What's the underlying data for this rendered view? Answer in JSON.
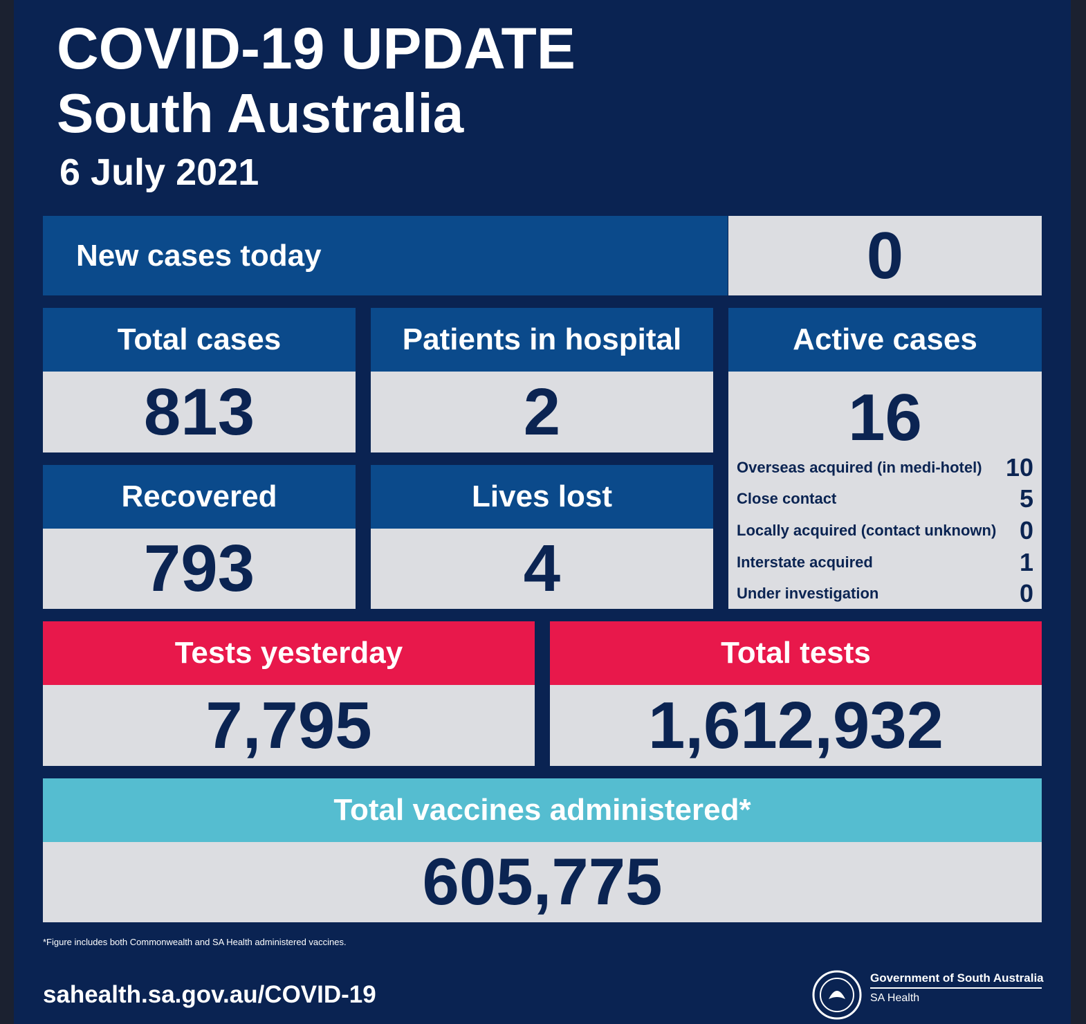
{
  "header": {
    "title": "COVID-19 UPDATE",
    "subtitle": "South Australia",
    "date": "6 July 2021"
  },
  "new_cases": {
    "label": "New cases today",
    "value": "0"
  },
  "tiles": [
    {
      "label": "Total cases",
      "value": "813"
    },
    {
      "label": "Patients in hospital",
      "value": "2"
    },
    {
      "label": "Recovered",
      "value": "793"
    },
    {
      "label": "Lives lost",
      "value": "4"
    }
  ],
  "active_cases": {
    "label": "Active cases",
    "value": "16",
    "breakdown": [
      {
        "label": "Overseas acquired (in medi-hotel)",
        "value": "10"
      },
      {
        "label": "Close contact",
        "value": "5"
      },
      {
        "label": "Locally acquired (contact unknown)",
        "value": "0"
      },
      {
        "label": "Interstate acquired",
        "value": "1"
      },
      {
        "label": "Under investigation",
        "value": "0"
      }
    ]
  },
  "tests": [
    {
      "label": "Tests yesterday",
      "value": "7,795"
    },
    {
      "label": "Total tests",
      "value": "1,612,932"
    }
  ],
  "vaccines": {
    "label": "Total vaccines administered*",
    "value": "605,775"
  },
  "footnote": "*Figure includes both Commonwealth and SA Health administered vaccines.",
  "url": "sahealth.sa.gov.au/COVID-19",
  "logo": {
    "org": "Government of South Australia",
    "dept": "SA Health"
  }
}
